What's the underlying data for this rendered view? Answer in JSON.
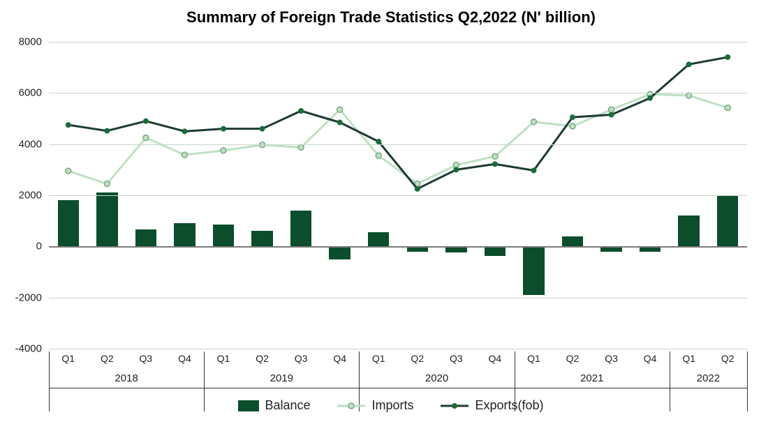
{
  "chart": {
    "type": "bar+line",
    "title": "Summary of Foreign Trade Statistics Q2,2022 (N' billion)",
    "title_fontsize": 22,
    "title_fontweight": 700,
    "background_color": "#ffffff",
    "grid_color": "#c5d8c7",
    "axis_color": "#7a7a7a",
    "label_color": "#222222",
    "font_family": "Arial",
    "tick_fontsize": 15,
    "category_fontsize": 14,
    "year_fontsize": 15,
    "ylim": [
      -4000,
      8000
    ],
    "yticks": [
      -4000,
      -2000,
      0,
      2000,
      4000,
      6000,
      8000
    ],
    "bar_width_ratio": 0.55,
    "categories": [
      "Q1",
      "Q2",
      "Q3",
      "Q4",
      "Q1",
      "Q2",
      "Q3",
      "Q4",
      "Q1",
      "Q2",
      "Q3",
      "Q4",
      "Q1",
      "Q2",
      "Q3",
      "Q4",
      "Q1",
      "Q2"
    ],
    "year_groups": [
      {
        "label": "2018",
        "span": [
          0,
          3
        ]
      },
      {
        "label": "2019",
        "span": [
          4,
          7
        ]
      },
      {
        "label": "2020",
        "span": [
          8,
          11
        ]
      },
      {
        "label": "2021",
        "span": [
          12,
          15
        ]
      },
      {
        "label": "2022",
        "span": [
          16,
          17
        ]
      }
    ],
    "series": {
      "balance": {
        "label": "Balance",
        "type": "bar",
        "color": "#0b4d2c",
        "values": [
          1800,
          2100,
          660,
          900,
          860,
          620,
          1400,
          -500,
          550,
          -200,
          -250,
          -380,
          -1900,
          380,
          -200,
          -220,
          1220,
          2000
        ]
      },
      "imports": {
        "label": "Imports",
        "type": "line",
        "color": "#bfe0c4",
        "line_width": 3,
        "marker": "circle",
        "marker_size": 8,
        "marker_border": "#7aa883",
        "values": [
          2950,
          2450,
          4250,
          3580,
          3750,
          3970,
          3870,
          5350,
          3550,
          2450,
          3180,
          3520,
          4870,
          4700,
          5350,
          5950,
          5900,
          5420
        ]
      },
      "exports": {
        "label": "Exports(fob)",
        "type": "line",
        "color": "#1e3a34",
        "line_width": 3,
        "marker": "circle",
        "marker_size": 8,
        "marker_fill": "#1a6b3a",
        "values": [
          4750,
          4520,
          4900,
          4500,
          4600,
          4600,
          5300,
          4850,
          4100,
          2250,
          3000,
          3220,
          2970,
          5050,
          5150,
          5800,
          7120,
          7400
        ]
      }
    },
    "legend": {
      "items": [
        "balance",
        "imports",
        "exports"
      ],
      "fontsize": 18
    }
  }
}
